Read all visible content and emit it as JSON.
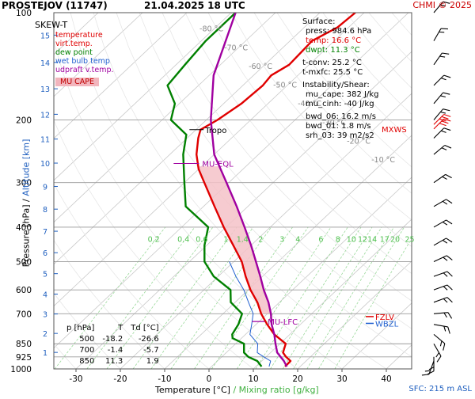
{
  "header": {
    "station": "PROSTEJOV (11747)",
    "datetime": "21.04.2025 18 UTC",
    "source": "CHMI © 2025"
  },
  "legend": {
    "title": "SKEW-T",
    "items": [
      {
        "label": "temperature",
        "color": "#e00000"
      },
      {
        "label": "virt.temp.",
        "color": "#e00000"
      },
      {
        "label": "dew point",
        "color": "#008000"
      },
      {
        "label": "wet bulb temp",
        "color": "#2060d0"
      },
      {
        "label": "udpraft v.temp.",
        "color": "#a000a0"
      }
    ],
    "cape_tag": "MU CAPE"
  },
  "surface": {
    "title": "Surface:",
    "press": "press: 984.6 hPa",
    "temp": "temp: 16.6 °C",
    "dwpt": "dwpt: 11.3 °C",
    "tconv": "t-conv: 25.2 °C",
    "tmxfc": "t-mxfc: 25.5 °C"
  },
  "instability": {
    "title": "Instability/Shear:",
    "mucape": "mu_cape: 382 J/kg",
    "mucinh": "mu_cinh: -40 J/kg",
    "bwd06": "bwd_06: 16.2 m/s",
    "bwd01": "bwd_01: 1.8 m/s",
    "srh03": "srh_03: 39 m2/s2"
  },
  "level_table": {
    "headers": [
      "p [hPa]",
      "T",
      "Td [°C]"
    ],
    "rows": [
      [
        "500",
        "-18.2",
        "-26.6"
      ],
      [
        "700",
        "-1.4",
        "-5.7"
      ],
      [
        "850",
        "11.3",
        "1.9"
      ]
    ]
  },
  "annotations": {
    "tropo": "Tropo",
    "mu_eql": "MU-EQL",
    "mu_lfc": "MU-LFC",
    "fzlv": "FZLV",
    "wbzl": "WBZL",
    "mxws": "MXWS"
  },
  "sfc_note": "SFC: 215 m ASL",
  "axis_titles": {
    "x_temp": "Temperature [°C]",
    "x_sep": "/",
    "x_mix": "Mixing ratio [g/kg]",
    "y_left": "Pressure [hPa]",
    "y_sep": "/",
    "y_alt": "Altitude [km]"
  },
  "chart_data": {
    "type": "line",
    "skewed": true,
    "y_scale": "log",
    "ylim": [
      1000,
      100
    ],
    "xlim": [
      -37,
      43
    ],
    "x_ticks": [
      -30,
      -20,
      -10,
      0,
      10,
      20,
      30,
      40
    ],
    "p_ticks": [
      100,
      200,
      300,
      400,
      500,
      600,
      700,
      850,
      925,
      1000
    ],
    "altitude_km_ticks": [
      1,
      2,
      3,
      4,
      5,
      6,
      7,
      8,
      9,
      10,
      11,
      12,
      13,
      14,
      15,
      16
    ],
    "isotherm_labels": [
      -80,
      -70,
      -60,
      -50,
      -40,
      -30,
      -20,
      -10
    ],
    "mixing_ratio_labels": [
      "0.2",
      "0.4",
      "0.6",
      "1",
      "1.4",
      "2",
      "3",
      "4",
      "6",
      "8",
      "10",
      "12",
      "14",
      "17",
      "20",
      "25"
    ],
    "series": [
      {
        "name": "temperature",
        "color": "#e00000",
        "points": [
          [
            985,
            16.6
          ],
          [
            950,
            16.5
          ],
          [
            925,
            14.5
          ],
          [
            900,
            12.8
          ],
          [
            850,
            11.3
          ],
          [
            800,
            6.5
          ],
          [
            750,
            2.5
          ],
          [
            700,
            -1.4
          ],
          [
            650,
            -5.0
          ],
          [
            600,
            -9.5
          ],
          [
            550,
            -13.8
          ],
          [
            500,
            -18.2
          ],
          [
            450,
            -24.0
          ],
          [
            400,
            -30.5
          ],
          [
            350,
            -37.5
          ],
          [
            300,
            -45.5
          ],
          [
            275,
            -50.0
          ],
          [
            250,
            -54.0
          ],
          [
            225,
            -57.5
          ],
          [
            213,
            -59.0
          ],
          [
            200,
            -57.5
          ],
          [
            180,
            -56.0
          ],
          [
            160,
            -55.5
          ],
          [
            150,
            -56.0
          ],
          [
            140,
            -54.5
          ],
          [
            120,
            -55.0
          ],
          [
            110,
            -52.5
          ],
          [
            100,
            -52.0
          ]
        ]
      },
      {
        "name": "dew point",
        "color": "#008000",
        "points": [
          [
            985,
            11.3
          ],
          [
            950,
            9.0
          ],
          [
            925,
            6.0
          ],
          [
            900,
            4.0
          ],
          [
            850,
            1.9
          ],
          [
            820,
            -2.0
          ],
          [
            800,
            -3.0
          ],
          [
            750,
            -4.0
          ],
          [
            700,
            -5.7
          ],
          [
            650,
            -11.0
          ],
          [
            600,
            -14.0
          ],
          [
            550,
            -21.0
          ],
          [
            500,
            -26.6
          ],
          [
            450,
            -30.5
          ],
          [
            400,
            -34.0
          ],
          [
            350,
            -44.0
          ],
          [
            300,
            -50.0
          ],
          [
            250,
            -57.0
          ],
          [
            220,
            -61.0
          ],
          [
            200,
            -68.0
          ],
          [
            180,
            -71.0
          ],
          [
            160,
            -77.0
          ],
          [
            140,
            -78.0
          ],
          [
            120,
            -79.0
          ],
          [
            100,
            -79.0
          ]
        ]
      },
      {
        "name": "wet bulb temp",
        "color": "#2060d0",
        "points": [
          [
            985,
            13.0
          ],
          [
            950,
            12.0
          ],
          [
            925,
            9.5
          ],
          [
            900,
            7.0
          ],
          [
            850,
            5.0
          ],
          [
            800,
            1.0
          ],
          [
            750,
            -1.0
          ],
          [
            700,
            -3.2
          ],
          [
            650,
            -7.0
          ],
          [
            600,
            -11.0
          ],
          [
            550,
            -16.0
          ],
          [
            500,
            -21.0
          ]
        ]
      },
      {
        "name": "udpraft v.temp.",
        "color": "#a000a0",
        "points": [
          [
            985,
            17.0
          ],
          [
            950,
            15.0
          ],
          [
            900,
            11.5
          ],
          [
            850,
            9.0
          ],
          [
            800,
            6.5
          ],
          [
            750,
            3.5
          ],
          [
            700,
            0.8
          ],
          [
            650,
            -2.5
          ],
          [
            600,
            -6.5
          ],
          [
            550,
            -10.5
          ],
          [
            500,
            -15.0
          ],
          [
            450,
            -20.0
          ],
          [
            400,
            -25.8
          ],
          [
            350,
            -32.5
          ],
          [
            300,
            -40.5
          ],
          [
            250,
            -50.0
          ],
          [
            200,
            -59.0
          ],
          [
            150,
            -69.0
          ],
          [
            100,
            -79.0
          ]
        ]
      }
    ]
  }
}
